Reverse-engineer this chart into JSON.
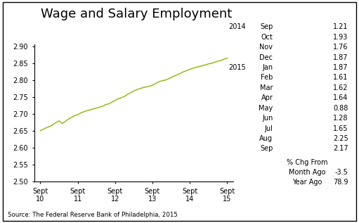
{
  "title": "Wage and Salary Employment",
  "source": "Source: The Federal Reserve Bank of Philadelphia, 2015",
  "line_color": "#8db600",
  "background_color": "#ffffff",
  "border_color": "#000000",
  "ylim": [
    2.5,
    2.905
  ],
  "yticks": [
    2.5,
    2.55,
    2.6,
    2.65,
    2.7,
    2.75,
    2.8,
    2.85,
    2.9
  ],
  "xtick_labels": [
    "Sept\n10",
    "Sept\n11",
    "Sept\n12",
    "Sept\n13",
    "Sept\n14",
    "Sept\n15"
  ],
  "x_values": [
    0,
    12,
    24,
    36,
    48,
    60
  ],
  "y_values": [
    2.651,
    2.655,
    2.66,
    2.663,
    2.668,
    2.675,
    2.68,
    2.672,
    2.678,
    2.685,
    2.69,
    2.695,
    2.698,
    2.703,
    2.707,
    2.71,
    2.712,
    2.715,
    2.718,
    2.72,
    2.723,
    2.728,
    2.73,
    2.735,
    2.74,
    2.745,
    2.748,
    2.752,
    2.758,
    2.763,
    2.768,
    2.772,
    2.775,
    2.778,
    2.78,
    2.782,
    2.785,
    2.79,
    2.795,
    2.798,
    2.8,
    2.803,
    2.808,
    2.812,
    2.816,
    2.82,
    2.825,
    2.828,
    2.832,
    2.835,
    2.838,
    2.84,
    2.843,
    2.845,
    2.848,
    2.85,
    2.853,
    2.856,
    2.858,
    2.862,
    2.865
  ],
  "right_panel_year1": "2014",
  "right_panel_year2": "2015",
  "right_panel_months": [
    "Sep",
    "Oct",
    "Nov",
    "Dec",
    "Jan",
    "Feb",
    "Mar",
    "Apr",
    "May",
    "Jun",
    "Jul",
    "Aug",
    "Sep"
  ],
  "right_panel_values": [
    "1.21",
    "1.93",
    "1.76",
    "1.87",
    "1.87",
    "1.61",
    "1.62",
    "1.64",
    "0.88",
    "1.28",
    "1.65",
    "2.25",
    "2.17"
  ],
  "pct_chg_label": "% Chg From",
  "month_ago_label": "Month Ago",
  "year_ago_label": "Year Ago",
  "month_ago_value": "-3.5",
  "year_ago_value": "78.9",
  "title_fontsize": 13,
  "tick_fontsize": 7,
  "annotation_fontsize": 7
}
